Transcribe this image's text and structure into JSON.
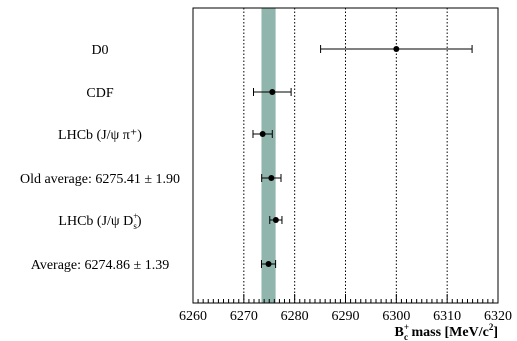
{
  "chart_data": {
    "type": "scatter",
    "title": "",
    "xlabel": "mass [MeV/c",
    "xlabel_symbol": "B",
    "xlabel_symbol_sup": "+",
    "xlabel_symbol_sub": "c",
    "xlabel_tail_sup": "2",
    "xlabel_tail_end": "]",
    "ylabel": "",
    "xlim": [
      6260,
      6320
    ],
    "major_ticks": [
      6260,
      6270,
      6280,
      6290,
      6300,
      6310,
      6320
    ],
    "grid_lines": [
      6270,
      6280,
      6290,
      6300,
      6310
    ],
    "band": {
      "center": 6274.86,
      "half_width": 1.39,
      "color": "#8fb5ad"
    },
    "series": [
      {
        "points": [
          {
            "label": "D0",
            "value": 6300,
            "err": 14.9
          },
          {
            "label": "CDF",
            "value": 6275.6,
            "err": 3.7
          },
          {
            "label": "LHCb (J/ψ π⁺)",
            "value": 6273.7,
            "err": 1.9
          },
          {
            "label": "Old average: 6275.41 ± 1.90",
            "value": 6275.41,
            "err": 1.9
          },
          {
            "label_main": "LHCb (J/ψ D",
            "label_sub": "s",
            "label_sup": "+",
            "label_end": ")",
            "value": 6276.3,
            "err": 1.2
          },
          {
            "label": "Average: 6274.86 ± 1.39",
            "value": 6274.86,
            "err": 1.39
          }
        ]
      }
    ]
  }
}
